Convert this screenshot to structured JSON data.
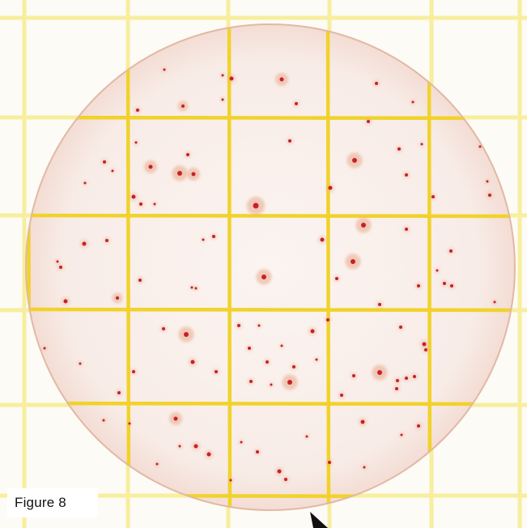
{
  "figure": {
    "caption": "Figure 8"
  },
  "plate": {
    "paper_color": "#fdfbf5",
    "fine_grid_color": "#f7ee9e",
    "grid_line_color": "#f1d22a",
    "colony_color": "#c8202a",
    "halo_color": "#e9a98a",
    "plate_edge_color": "#e2b8a6",
    "pointer_icon": "arrow-pointer-icon"
  }
}
